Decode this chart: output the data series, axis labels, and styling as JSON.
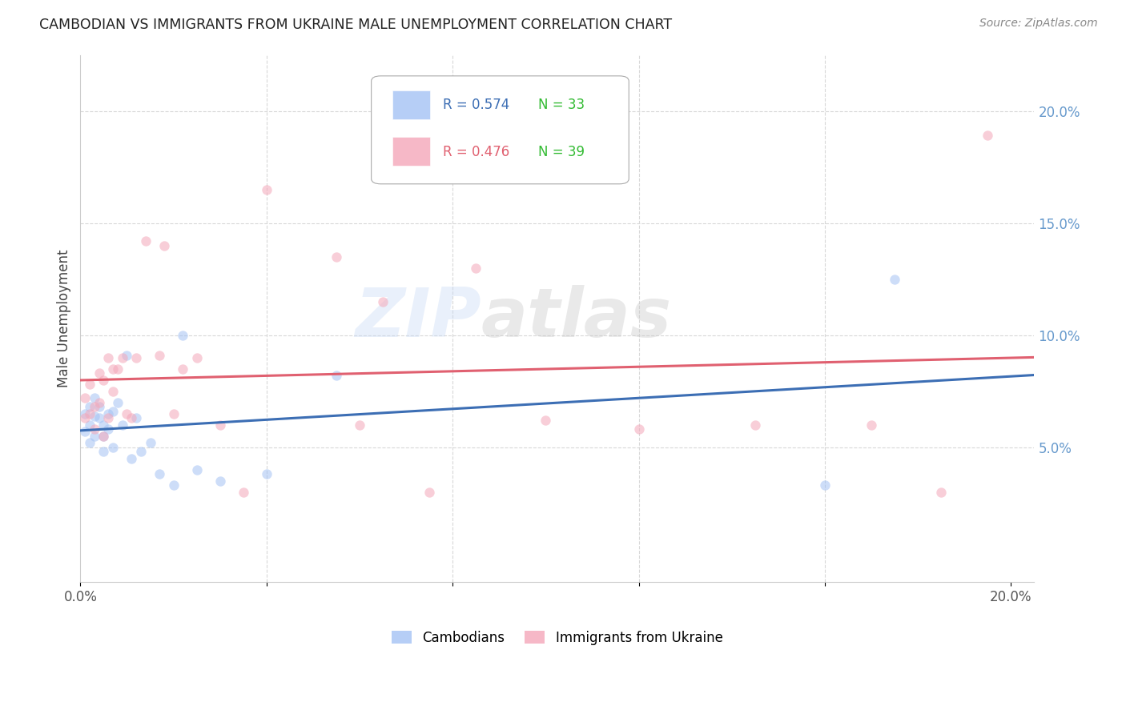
{
  "title": "CAMBODIAN VS IMMIGRANTS FROM UKRAINE MALE UNEMPLOYMENT CORRELATION CHART",
  "source": "Source: ZipAtlas.com",
  "ylabel": "Male Unemployment",
  "xlim": [
    0.0,
    0.205
  ],
  "ylim": [
    -0.01,
    0.225
  ],
  "y_ticks_right": [
    0.05,
    0.1,
    0.15,
    0.2
  ],
  "y_tick_labels_right": [
    "5.0%",
    "10.0%",
    "15.0%",
    "20.0%"
  ],
  "background_color": "#ffffff",
  "grid_color": "#d8d8d8",
  "watermark": "ZIPatlas",
  "legend": {
    "series1_label": "Cambodians",
    "series2_label": "Immigrants from Ukraine",
    "R1": "R = 0.574",
    "N1": "N = 33",
    "R2": "R = 0.476",
    "N2": "N = 39"
  },
  "cambodian_x": [
    0.001,
    0.001,
    0.002,
    0.002,
    0.002,
    0.003,
    0.003,
    0.003,
    0.004,
    0.004,
    0.005,
    0.005,
    0.005,
    0.006,
    0.006,
    0.007,
    0.007,
    0.008,
    0.009,
    0.01,
    0.011,
    0.012,
    0.013,
    0.015,
    0.017,
    0.02,
    0.022,
    0.025,
    0.03,
    0.04,
    0.055,
    0.16,
    0.175
  ],
  "cambodian_y": [
    0.065,
    0.057,
    0.068,
    0.06,
    0.052,
    0.072,
    0.064,
    0.055,
    0.068,
    0.063,
    0.06,
    0.055,
    0.048,
    0.065,
    0.058,
    0.066,
    0.05,
    0.07,
    0.06,
    0.091,
    0.045,
    0.063,
    0.048,
    0.052,
    0.038,
    0.033,
    0.1,
    0.04,
    0.035,
    0.038,
    0.082,
    0.033,
    0.125
  ],
  "ukraine_x": [
    0.001,
    0.001,
    0.002,
    0.002,
    0.003,
    0.003,
    0.004,
    0.004,
    0.005,
    0.005,
    0.006,
    0.006,
    0.007,
    0.007,
    0.008,
    0.009,
    0.01,
    0.011,
    0.012,
    0.014,
    0.017,
    0.018,
    0.02,
    0.022,
    0.025,
    0.03,
    0.035,
    0.04,
    0.055,
    0.06,
    0.065,
    0.075,
    0.085,
    0.1,
    0.12,
    0.145,
    0.17,
    0.185,
    0.195
  ],
  "ukraine_y": [
    0.072,
    0.063,
    0.078,
    0.065,
    0.068,
    0.058,
    0.083,
    0.07,
    0.08,
    0.055,
    0.09,
    0.063,
    0.085,
    0.075,
    0.085,
    0.09,
    0.065,
    0.063,
    0.09,
    0.142,
    0.091,
    0.14,
    0.065,
    0.085,
    0.09,
    0.06,
    0.03,
    0.165,
    0.135,
    0.06,
    0.115,
    0.03,
    0.13,
    0.062,
    0.058,
    0.06,
    0.06,
    0.03,
    0.189
  ],
  "blue_color": "#a4c2f4",
  "pink_color": "#f4a7b9",
  "blue_line_color": "#3c6eb4",
  "pink_line_color": "#e06070",
  "marker_size": 80,
  "marker_alpha": 0.55,
  "line_width": 2.2
}
